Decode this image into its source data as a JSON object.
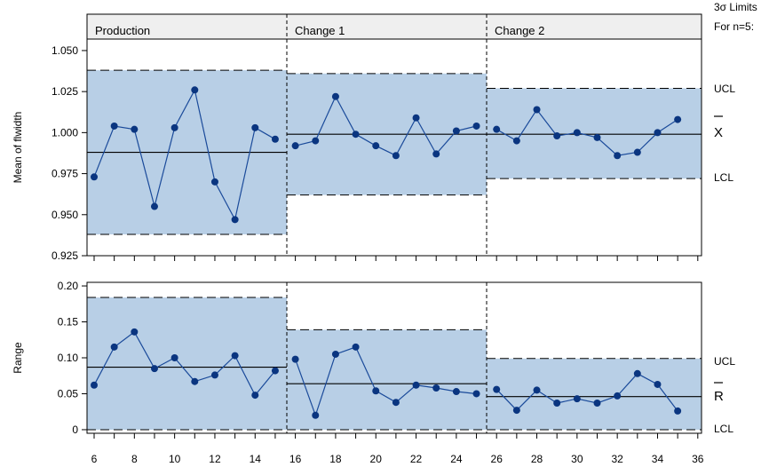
{
  "legend": {
    "limits_title": "3σ Limits",
    "n_label": "For n=5:",
    "ucl": "UCL",
    "xbar": "X",
    "rbar": "R",
    "lcl": "LCL"
  },
  "colors": {
    "band": "#b8cfe6",
    "point": "#0a3580",
    "line": "#1a4a9a",
    "header": "#efefef"
  },
  "chart_data": [
    {
      "type": "line",
      "title": "",
      "ylabel": "Mean of flwidth",
      "ylim": [
        0.925,
        1.057
      ],
      "yticks": [
        "0.925",
        "0.950",
        "0.975",
        "1.000",
        "1.025",
        "1.050"
      ],
      "stages": [
        {
          "name": "Production",
          "x_range": [
            6,
            15
          ],
          "center": 0.988,
          "ucl": 1.038,
          "lcl": 0.938
        },
        {
          "name": "Change 1",
          "x_range": [
            16,
            25
          ],
          "center": 0.999,
          "ucl": 1.036,
          "lcl": 0.962
        },
        {
          "name": "Change 2",
          "x_range": [
            26,
            35
          ],
          "center": 0.999,
          "ucl": 1.027,
          "lcl": 0.972
        }
      ],
      "series": [
        {
          "x": [
            6,
            7,
            8,
            9,
            10,
            11,
            12,
            13,
            14,
            15,
            16,
            17,
            18,
            19,
            20,
            21,
            22,
            23,
            24,
            25,
            26,
            27,
            28,
            29,
            30,
            31,
            32,
            33,
            34,
            35
          ],
          "values": [
            0.973,
            1.004,
            1.002,
            0.955,
            1.003,
            1.026,
            0.97,
            0.947,
            1.003,
            0.996,
            0.992,
            0.995,
            1.022,
            0.999,
            0.992,
            0.986,
            1.009,
            0.987,
            1.001,
            1.004,
            1.002,
            0.995,
            1.014,
            0.998,
            1.0,
            0.997,
            0.986,
            0.988,
            1.0,
            1.008
          ]
        }
      ]
    },
    {
      "type": "line",
      "title": "",
      "ylabel": "Range",
      "ylim": [
        -0.005,
        0.205
      ],
      "yticks": [
        "0",
        "0.05",
        "0.10",
        "0.15",
        "0.20"
      ],
      "stages": [
        {
          "name": "Production",
          "x_range": [
            6,
            15
          ],
          "center": 0.087,
          "ucl": 0.184,
          "lcl": 0
        },
        {
          "name": "Change 1",
          "x_range": [
            16,
            25
          ],
          "center": 0.064,
          "ucl": 0.139,
          "lcl": 0
        },
        {
          "name": "Change 2",
          "x_range": [
            26,
            35
          ],
          "center": 0.046,
          "ucl": 0.099,
          "lcl": 0
        }
      ],
      "series": [
        {
          "x": [
            6,
            7,
            8,
            9,
            10,
            11,
            12,
            13,
            14,
            15,
            16,
            17,
            18,
            19,
            20,
            21,
            22,
            23,
            24,
            25,
            26,
            27,
            28,
            29,
            30,
            31,
            32,
            33,
            34,
            35
          ],
          "values": [
            0.062,
            0.115,
            0.136,
            0.085,
            0.1,
            0.067,
            0.076,
            0.103,
            0.048,
            0.082,
            0.098,
            0.02,
            0.105,
            0.115,
            0.054,
            0.038,
            0.062,
            0.058,
            0.053,
            0.05,
            0.056,
            0.027,
            0.055,
            0.037,
            0.043,
            0.037,
            0.047,
            0.078,
            0.063,
            0.026
          ]
        }
      ],
      "xticks": [
        "6",
        "8",
        "10",
        "12",
        "14",
        "16",
        "18",
        "20",
        "22",
        "24",
        "26",
        "28",
        "30",
        "32",
        "34",
        "36"
      ]
    }
  ]
}
